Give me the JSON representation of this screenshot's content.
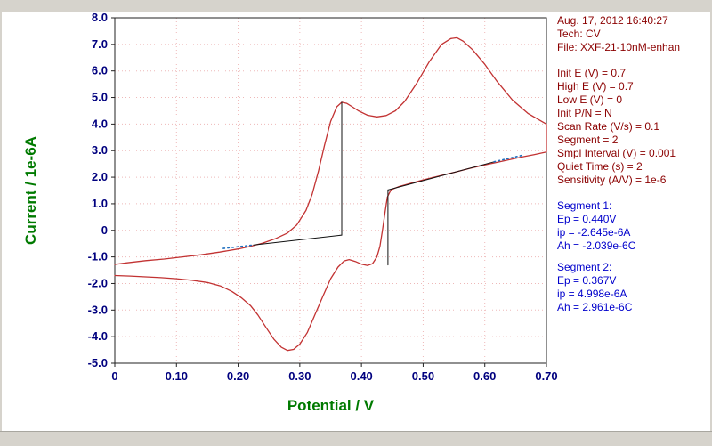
{
  "window": {
    "bg": "#ffffff",
    "chrome_color": "#d6d3cc"
  },
  "info_panel": {
    "header": [
      "Aug. 17, 2012   16:40:27",
      "Tech: CV",
      "File: XXF-21-10nM-enhan"
    ],
    "params": [
      "Init E (V) = 0.7",
      "High E (V) = 0.7",
      "Low E (V) = 0",
      "Init P/N = N",
      "Scan Rate (V/s) = 0.1",
      "Segment = 2",
      "Smpl Interval (V) = 0.001",
      "Quiet Time (s) = 2",
      "Sensitivity (A/V) = 1e-6"
    ],
    "segment1": [
      "Segment 1:",
      "Ep = 0.440V",
      "ip = -2.645e-6A",
      "Ah = -2.039e-6C"
    ],
    "segment2": [
      "Segment 2:",
      "Ep = 0.367V",
      "ip = 4.998e-6A",
      "Ah = 2.961e-6C"
    ],
    "text_color": "#8b0000",
    "result_color": "#0000cc"
  },
  "chart_data": {
    "type": "line",
    "title": "",
    "xlabel": "Potential / V",
    "ylabel": "Current / 1e-6A",
    "xlim": [
      0,
      0.7
    ],
    "ylim": [
      -5,
      8
    ],
    "axis_label_color": "#007a00",
    "tick_color": "#00007f",
    "grid": {
      "on": true,
      "color": "#eeb8b8",
      "x": [
        0.1,
        0.2,
        0.3,
        0.4,
        0.5,
        0.6
      ],
      "y": [
        -4,
        -3,
        -2,
        -1,
        0,
        1,
        2,
        3,
        4,
        5,
        6,
        7
      ]
    },
    "xticks": [
      {
        "v": 0.0,
        "label": "0"
      },
      {
        "v": 0.1,
        "label": "0.10"
      },
      {
        "v": 0.2,
        "label": "0.20"
      },
      {
        "v": 0.3,
        "label": "0.30"
      },
      {
        "v": 0.4,
        "label": "0.40"
      },
      {
        "v": 0.5,
        "label": "0.50"
      },
      {
        "v": 0.6,
        "label": "0.60"
      },
      {
        "v": 0.7,
        "label": "0.70"
      }
    ],
    "yticks": [
      {
        "v": 8,
        "label": "8.0"
      },
      {
        "v": 7,
        "label": "7.0"
      },
      {
        "v": 6,
        "label": "6.0"
      },
      {
        "v": 5,
        "label": "5.0"
      },
      {
        "v": 4,
        "label": "4.0"
      },
      {
        "v": 3,
        "label": "3.0"
      },
      {
        "v": 2,
        "label": "2.0"
      },
      {
        "v": 1,
        "label": "1.0"
      },
      {
        "v": 0,
        "label": "0"
      },
      {
        "v": -1,
        "label": "-1.0"
      },
      {
        "v": -2,
        "label": "-2.0"
      },
      {
        "v": -3,
        "label": "-3.0"
      },
      {
        "v": -4,
        "label": "-4.0"
      },
      {
        "v": -5,
        "label": "-5.0"
      }
    ],
    "series": [
      {
        "name": "cv-curve",
        "color": "#c23232",
        "width": 1.3,
        "points": [
          [
            0.0,
            -1.28
          ],
          [
            0.02,
            -1.22
          ],
          [
            0.05,
            -1.14
          ],
          [
            0.08,
            -1.08
          ],
          [
            0.11,
            -1.0
          ],
          [
            0.14,
            -0.92
          ],
          [
            0.17,
            -0.82
          ],
          [
            0.2,
            -0.7
          ],
          [
            0.22,
            -0.6
          ],
          [
            0.24,
            -0.48
          ],
          [
            0.26,
            -0.32
          ],
          [
            0.28,
            -0.1
          ],
          [
            0.295,
            0.2
          ],
          [
            0.31,
            0.75
          ],
          [
            0.32,
            1.35
          ],
          [
            0.33,
            2.2
          ],
          [
            0.34,
            3.2
          ],
          [
            0.35,
            4.1
          ],
          [
            0.36,
            4.65
          ],
          [
            0.368,
            4.82
          ],
          [
            0.376,
            4.78
          ],
          [
            0.385,
            4.65
          ],
          [
            0.395,
            4.5
          ],
          [
            0.41,
            4.33
          ],
          [
            0.425,
            4.27
          ],
          [
            0.44,
            4.32
          ],
          [
            0.455,
            4.5
          ],
          [
            0.47,
            4.85
          ],
          [
            0.49,
            5.55
          ],
          [
            0.51,
            6.35
          ],
          [
            0.53,
            7.0
          ],
          [
            0.545,
            7.22
          ],
          [
            0.555,
            7.25
          ],
          [
            0.565,
            7.12
          ],
          [
            0.58,
            6.8
          ],
          [
            0.6,
            6.25
          ],
          [
            0.62,
            5.6
          ],
          [
            0.645,
            4.9
          ],
          [
            0.67,
            4.4
          ],
          [
            0.7,
            4.0
          ],
          [
            0.7,
            2.95
          ],
          [
            0.68,
            2.85
          ],
          [
            0.66,
            2.76
          ],
          [
            0.64,
            2.66
          ],
          [
            0.62,
            2.56
          ],
          [
            0.6,
            2.46
          ],
          [
            0.575,
            2.33
          ],
          [
            0.55,
            2.18
          ],
          [
            0.525,
            2.04
          ],
          [
            0.5,
            1.9
          ],
          [
            0.48,
            1.77
          ],
          [
            0.46,
            1.64
          ],
          [
            0.448,
            1.53
          ],
          [
            0.442,
            1.25
          ],
          [
            0.438,
            0.65
          ],
          [
            0.434,
            0.0
          ],
          [
            0.43,
            -0.6
          ],
          [
            0.425,
            -1.0
          ],
          [
            0.418,
            -1.25
          ],
          [
            0.41,
            -1.32
          ],
          [
            0.4,
            -1.27
          ],
          [
            0.39,
            -1.17
          ],
          [
            0.38,
            -1.1
          ],
          [
            0.372,
            -1.15
          ],
          [
            0.362,
            -1.38
          ],
          [
            0.35,
            -1.82
          ],
          [
            0.338,
            -2.45
          ],
          [
            0.325,
            -3.15
          ],
          [
            0.312,
            -3.85
          ],
          [
            0.3,
            -4.28
          ],
          [
            0.29,
            -4.48
          ],
          [
            0.28,
            -4.52
          ],
          [
            0.27,
            -4.4
          ],
          [
            0.258,
            -4.1
          ],
          [
            0.245,
            -3.65
          ],
          [
            0.232,
            -3.18
          ],
          [
            0.22,
            -2.83
          ],
          [
            0.205,
            -2.53
          ],
          [
            0.19,
            -2.3
          ],
          [
            0.172,
            -2.1
          ],
          [
            0.15,
            -1.96
          ],
          [
            0.125,
            -1.88
          ],
          [
            0.1,
            -1.82
          ],
          [
            0.075,
            -1.78
          ],
          [
            0.05,
            -1.75
          ],
          [
            0.025,
            -1.72
          ],
          [
            0.0,
            -1.7
          ]
        ]
      },
      {
        "name": "baseline-1",
        "color": "#111111",
        "width": 1,
        "points": [
          [
            0.225,
            -0.55
          ],
          [
            0.368,
            -0.18
          ]
        ]
      },
      {
        "name": "baseline-1-vertical",
        "color": "#111111",
        "width": 1,
        "points": [
          [
            0.368,
            -0.18
          ],
          [
            0.368,
            4.82
          ]
        ]
      },
      {
        "name": "baseline-1-ext-dotted",
        "color": "#1f6fbf",
        "width": 1.6,
        "dash": "1.5 3.5",
        "points": [
          [
            0.176,
            -0.68
          ],
          [
            0.225,
            -0.55
          ]
        ]
      },
      {
        "name": "baseline-2",
        "color": "#111111",
        "width": 1,
        "points": [
          [
            0.443,
            1.52
          ],
          [
            0.615,
            2.58
          ]
        ]
      },
      {
        "name": "baseline-2-vertical",
        "color": "#111111",
        "width": 1,
        "points": [
          [
            0.443,
            1.52
          ],
          [
            0.443,
            -1.3
          ]
        ]
      },
      {
        "name": "baseline-2-ext-dotted",
        "color": "#1f6fbf",
        "width": 1.6,
        "dash": "1.5 3.5",
        "points": [
          [
            0.615,
            2.58
          ],
          [
            0.66,
            2.82
          ]
        ]
      }
    ],
    "annotations": [
      {
        "name": "segment-1",
        "Ep_V": "0.440",
        "ip_A": "-2.645e-6",
        "Ah_C": "-2.039e-6"
      },
      {
        "name": "segment-2",
        "Ep_V": "0.367",
        "ip_A": "4.998e-6",
        "Ah_C": "2.961e-6"
      }
    ],
    "legend": {
      "on": false
    }
  }
}
